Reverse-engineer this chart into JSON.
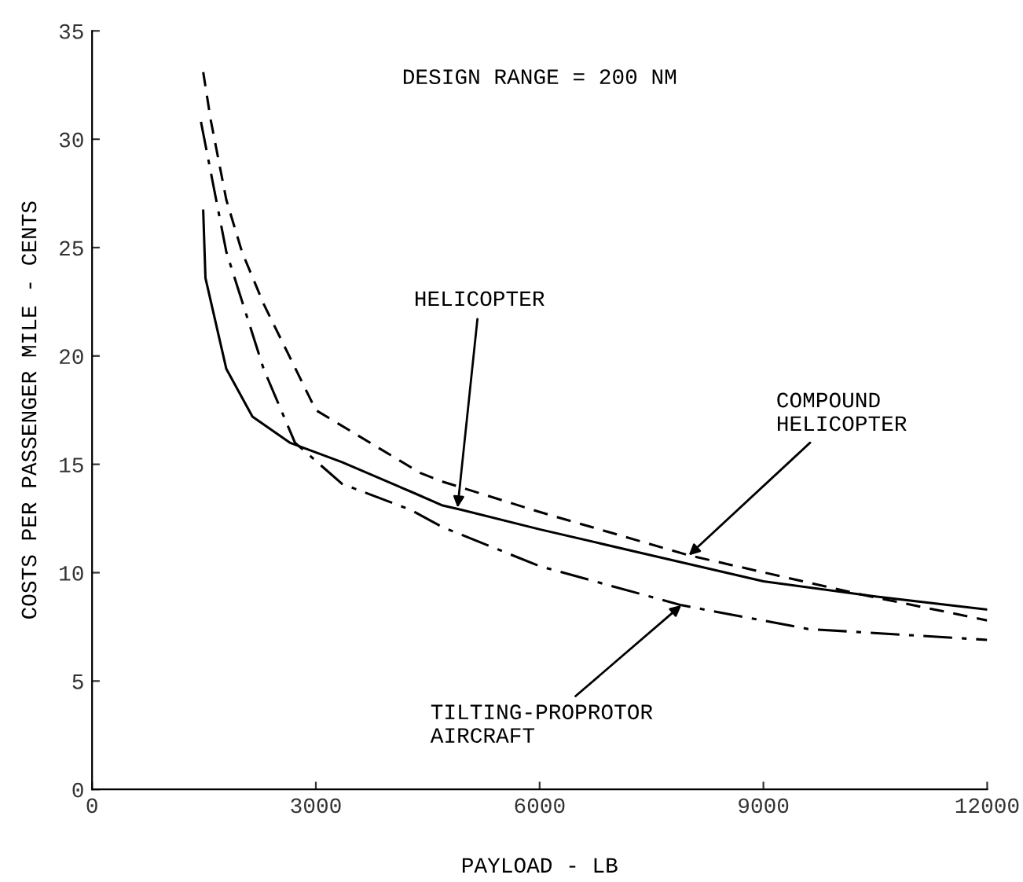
{
  "chart_data": {
    "type": "line",
    "xlabel": "PAYLOAD - LB",
    "ylabel": "COSTS PER PASSENGER MILE - CENTS",
    "xlim": [
      0,
      12000
    ],
    "xticks": [
      0,
      3000,
      6000,
      9000,
      12000
    ],
    "ylim": [
      0,
      35
    ],
    "yticks": [
      0,
      5,
      10,
      15,
      20,
      25,
      30,
      35
    ],
    "grid": false,
    "legend": false,
    "marker": "none",
    "series": [
      {
        "color": "#000000",
        "line_style": "solid",
        "x": [
          1490,
          1520,
          1800,
          2150,
          2650,
          3350,
          4300,
          4700,
          4950,
          6000,
          7500,
          9000,
          10500,
          12000
        ],
        "values": [
          26.7,
          23.6,
          19.4,
          17.2,
          16.0,
          15.1,
          13.7,
          13.1,
          12.9,
          12.0,
          10.8,
          9.6,
          8.9,
          8.3
        ]
      },
      {
        "color": "#000000",
        "line_style": "dashed",
        "x": [
          1490,
          1590,
          1800,
          2010,
          2300,
          3000,
          4400,
          4700,
          6000,
          8000,
          10300,
          12000
        ],
        "values": [
          33.1,
          30.9,
          27.2,
          24.8,
          22.4,
          17.5,
          14.6,
          14.2,
          12.8,
          10.8,
          9.0,
          7.8
        ]
      },
      {
        "color": "#000000",
        "line_style": "dashdot",
        "x": [
          1460,
          1800,
          2300,
          2720,
          3350,
          4270,
          4700,
          6000,
          7900,
          9600,
          12000
        ],
        "values": [
          30.8,
          24.8,
          19.4,
          16.0,
          14.1,
          12.9,
          12.1,
          10.3,
          8.5,
          7.4,
          6.9
        ]
      }
    ],
    "annotations": [
      "DESIGN RANGE = 200 NM",
      {
        "text": "HELICOPTER",
        "x": 4900,
        "y": 13.0
      },
      {
        "text": "COMPOUND\nHELICOPTER",
        "x": 8000,
        "y": 10.8
      },
      {
        "text": "TILTING-PROPROTOR\nAIRCRAFT",
        "x": 7900,
        "y": 8.5
      }
    ]
  }
}
